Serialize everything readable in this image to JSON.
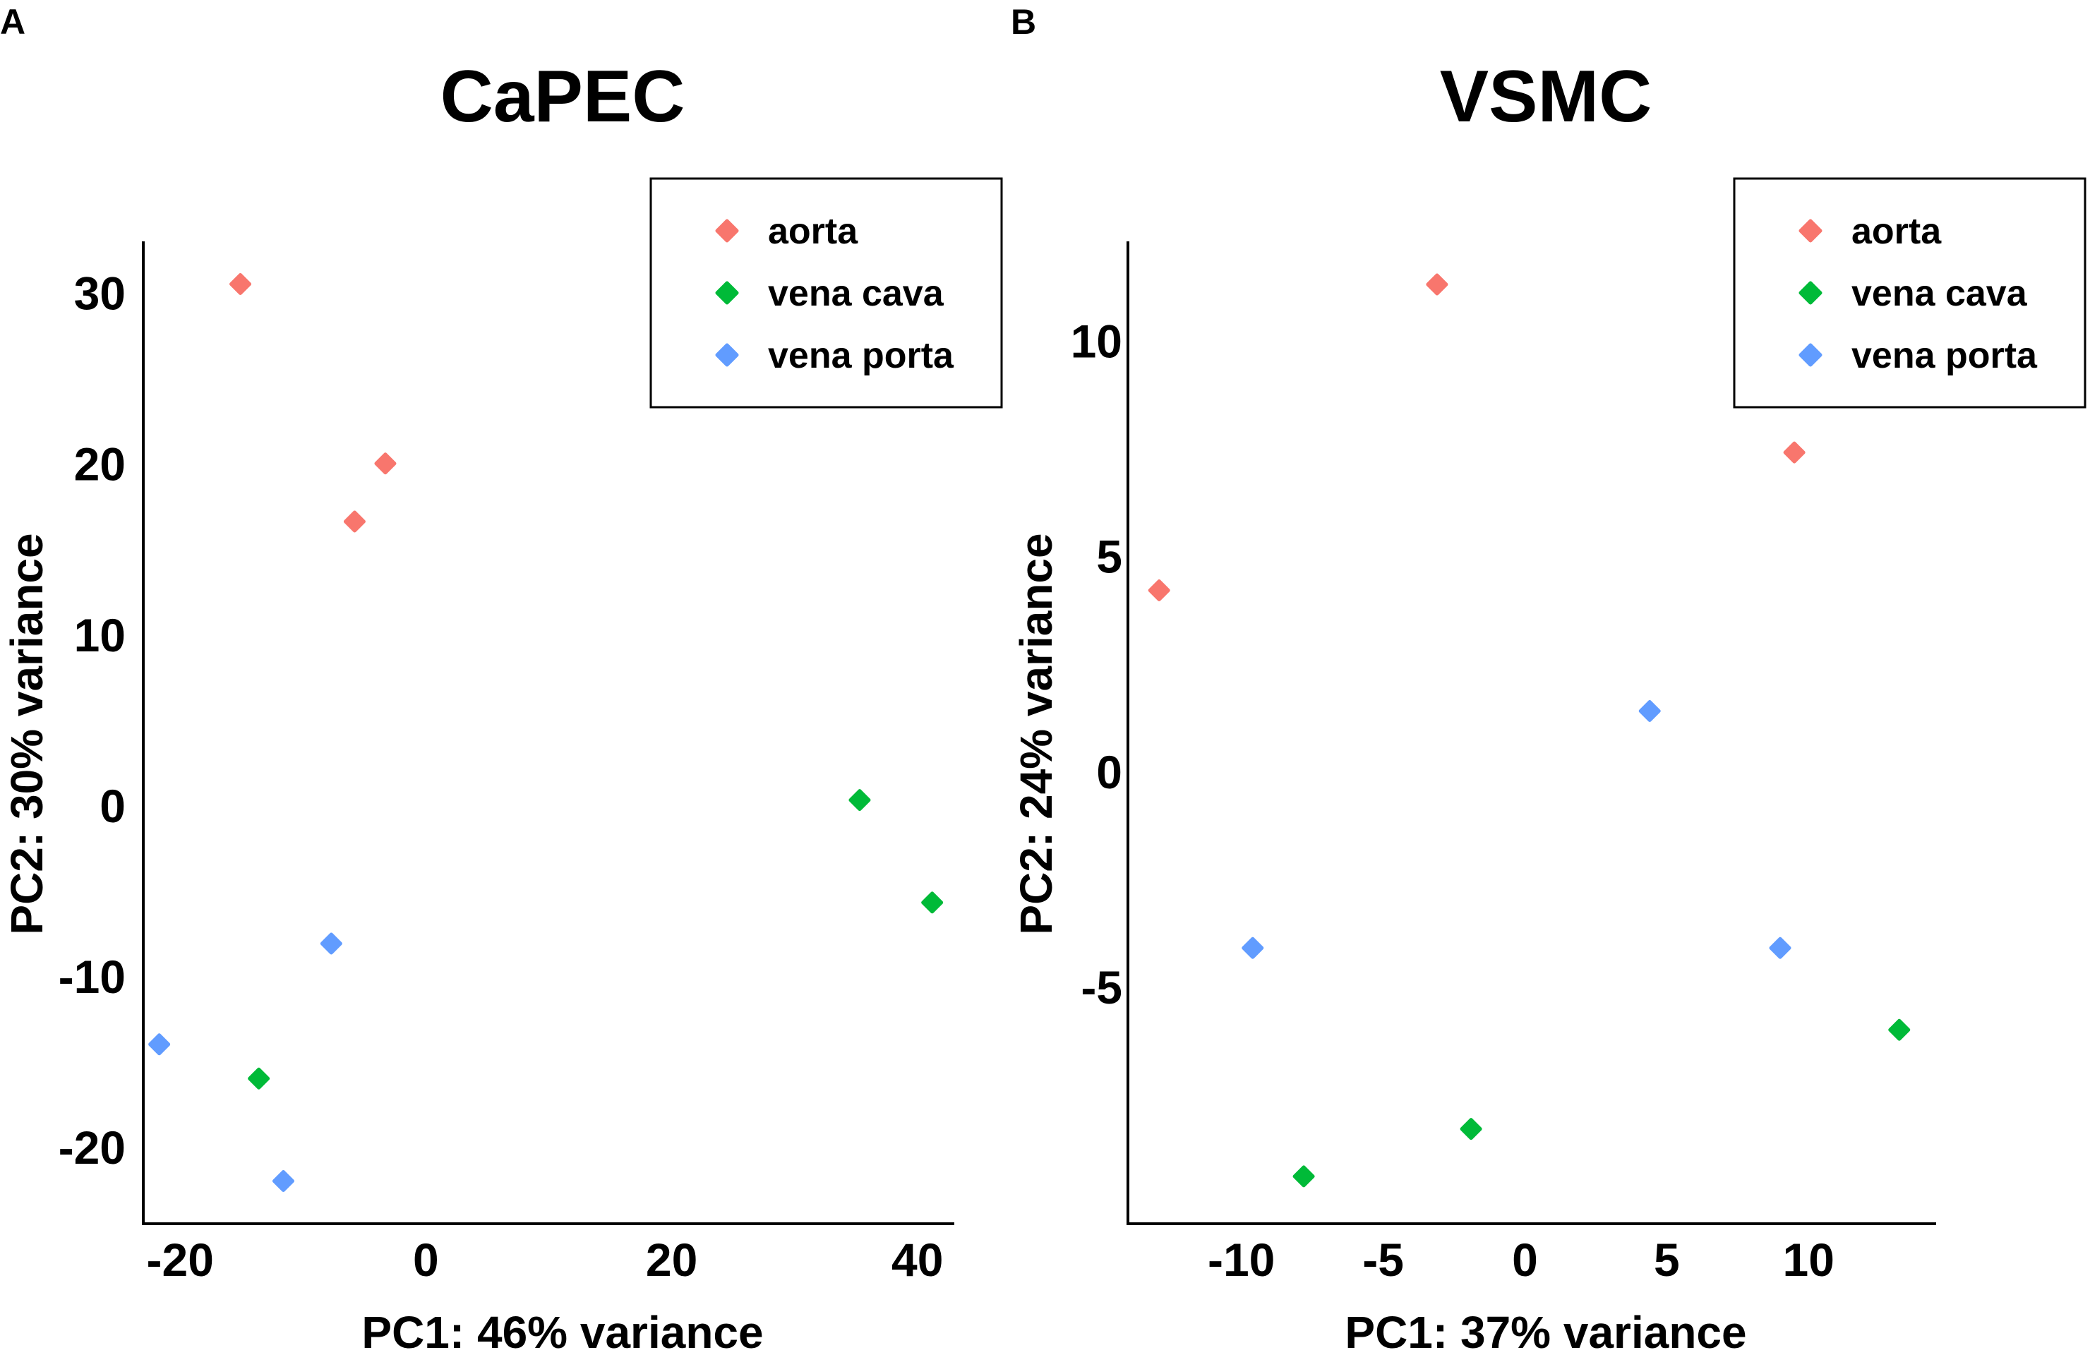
{
  "chart_data": [
    {
      "panel": "A",
      "type": "scatter",
      "title": "CaPEC",
      "xlabel": "PC1: 46% variance",
      "ylabel": "PC2: 30% variance",
      "xlim": [
        -23,
        43
      ],
      "ylim": [
        -24.5,
        33
      ],
      "xticks": [
        -20,
        0,
        20,
        40
      ],
      "xtick_labels": [
        "-20",
        "0",
        "20",
        "40"
      ],
      "yticks": [
        -20,
        -10,
        0,
        10,
        20,
        30
      ],
      "ytick_labels": [
        "-20",
        "-10",
        "0",
        "10",
        "20",
        "30"
      ],
      "legend_position": "top-right",
      "series": [
        {
          "name": "aorta",
          "color": "#F8766D",
          "points": [
            [
              -15.1,
              30.5
            ],
            [
              -3.3,
              20.0
            ],
            [
              -5.8,
              16.6
            ]
          ]
        },
        {
          "name": "vena cava",
          "color": "#00BA38",
          "points": [
            [
              35.3,
              0.3
            ],
            [
              41.2,
              -5.7
            ],
            [
              -13.6,
              -16.0
            ]
          ]
        },
        {
          "name": "vena porta",
          "color": "#619CFF",
          "points": [
            [
              -7.7,
              -8.1
            ],
            [
              -21.7,
              -14.0
            ],
            [
              -11.6,
              -22.0
            ]
          ]
        }
      ]
    },
    {
      "panel": "B",
      "type": "scatter",
      "title": "VSMC",
      "xlabel": "PC1: 37% variance",
      "ylabel": "PC2: 24% variance",
      "xlim": [
        -14,
        14.5
      ],
      "ylim": [
        -10.5,
        12.3
      ],
      "xticks": [
        -10,
        -5,
        0,
        5,
        10
      ],
      "xtick_labels": [
        "-10",
        "-5",
        "0",
        "5",
        "10"
      ],
      "yticks": [
        -5,
        0,
        5,
        10
      ],
      "ytick_labels": [
        "-5",
        "0",
        "5",
        "10"
      ],
      "legend_position": "top-right",
      "series": [
        {
          "name": "aorta",
          "color": "#F8766D",
          "points": [
            [
              -3.1,
              11.3
            ],
            [
              9.5,
              7.4
            ],
            [
              -12.9,
              4.2
            ]
          ]
        },
        {
          "name": "vena cava",
          "color": "#00BA38",
          "points": [
            [
              13.2,
              -6.0
            ],
            [
              -1.9,
              -8.3
            ],
            [
              -7.8,
              -9.4
            ]
          ]
        },
        {
          "name": "vena porta",
          "color": "#619CFF",
          "points": [
            [
              4.4,
              1.4
            ],
            [
              -9.6,
              -4.1
            ],
            [
              9.0,
              -4.1
            ]
          ]
        }
      ]
    }
  ]
}
